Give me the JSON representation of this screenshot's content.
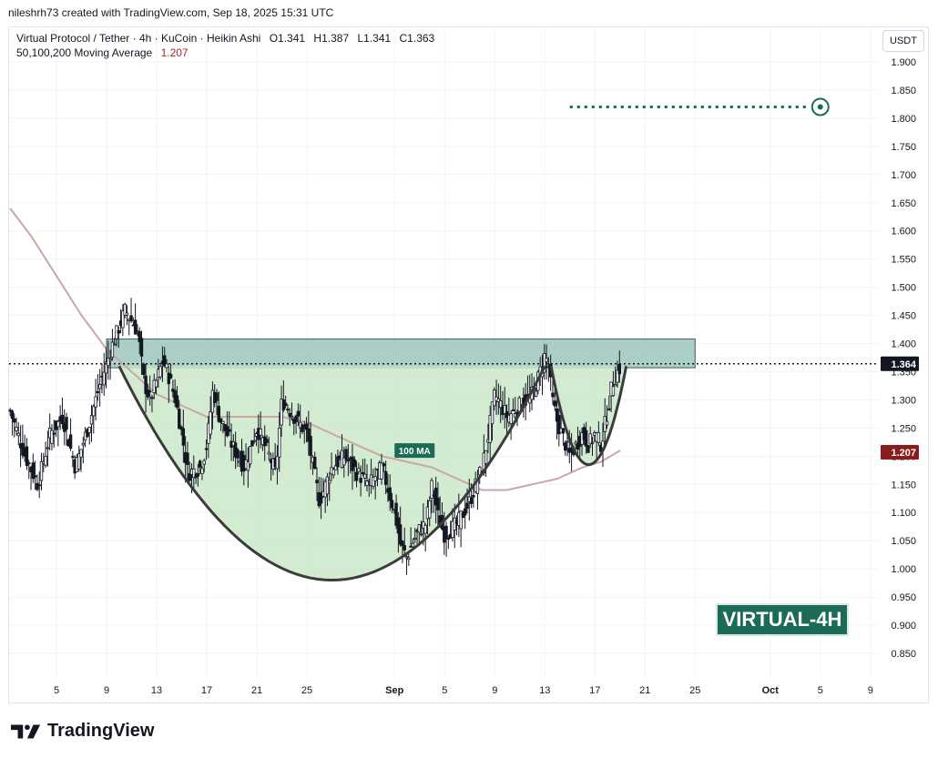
{
  "header": {
    "credit": "nileshrh73 created with TradingView.com, Sep 18, 2025 15:31 UTC"
  },
  "legend": {
    "symbol_line": "Virtual Protocol / Tether · 4h · KuCoin · Heikin Ashi",
    "open": "O1.341",
    "high": "H1.387",
    "low": "L1.341",
    "close": "C1.363",
    "ma_label": "50,100,200 Moving Average",
    "ma_value": "1.207"
  },
  "price_scale": {
    "unit_button": "USDT",
    "current_price_label": "1.364",
    "ma_price_label": "1.207",
    "colors": {
      "current": "#131722",
      "ma": "#8a1c1c"
    }
  },
  "annotations": {
    "ma_label": "100 MA",
    "badge": "VIRTUAL-4H"
  },
  "footer": {
    "logo_text": "TradingView"
  },
  "chart_data": {
    "type": "candlestick",
    "title": "",
    "y_ticks": [
      "1.900",
      "1.850",
      "1.800",
      "1.750",
      "1.700",
      "1.650",
      "1.600",
      "1.550",
      "1.500",
      "1.450",
      "1.400",
      "1.350",
      "1.300",
      "1.250",
      "1.200",
      "1.150",
      "1.100",
      "1.050",
      "1.000",
      "0.950",
      "0.900",
      "0.850"
    ],
    "ylim": [
      0.81,
      1.95
    ],
    "x_ticks": [
      {
        "label": "5",
        "day": 5
      },
      {
        "label": "9",
        "day": 9
      },
      {
        "label": "13",
        "day": 13
      },
      {
        "label": "17",
        "day": 17
      },
      {
        "label": "21",
        "day": 21
      },
      {
        "label": "25",
        "day": 25
      },
      {
        "label": "Sep",
        "day": 32,
        "bold": true
      },
      {
        "label": "5",
        "day": 36
      },
      {
        "label": "9",
        "day": 40
      },
      {
        "label": "13",
        "day": 44
      },
      {
        "label": "17",
        "day": 48
      },
      {
        "label": "21",
        "day": 52
      },
      {
        "label": "25",
        "day": 56
      },
      {
        "label": "Oct",
        "day": 62,
        "bold": true
      },
      {
        "label": "5",
        "day": 66
      },
      {
        "label": "9",
        "day": 70
      }
    ],
    "xlim": [
      1.3,
      72.0
    ],
    "price_path": [
      [
        1.3,
        1.28
      ],
      [
        2.5,
        1.2
      ],
      [
        3.5,
        1.15
      ],
      [
        4.5,
        1.24
      ],
      [
        5.5,
        1.27
      ],
      [
        6.5,
        1.18
      ],
      [
        7.5,
        1.25
      ],
      [
        8.5,
        1.33
      ],
      [
        9.5,
        1.4
      ],
      [
        10.5,
        1.46
      ],
      [
        11.0,
        1.44
      ],
      [
        11.5,
        1.42
      ],
      [
        12.0,
        1.33
      ],
      [
        12.5,
        1.3
      ],
      [
        13.5,
        1.37
      ],
      [
        14.0,
        1.34
      ],
      [
        14.5,
        1.3
      ],
      [
        15.0,
        1.24
      ],
      [
        15.5,
        1.17
      ],
      [
        16.5,
        1.18
      ],
      [
        17.0,
        1.22
      ],
      [
        17.5,
        1.32
      ],
      [
        18.0,
        1.27
      ],
      [
        19.0,
        1.22
      ],
      [
        20.0,
        1.18
      ],
      [
        21.0,
        1.25
      ],
      [
        22.0,
        1.2
      ],
      [
        22.5,
        1.17
      ],
      [
        23.0,
        1.3
      ],
      [
        24.0,
        1.27
      ],
      [
        25.0,
        1.24
      ],
      [
        26.0,
        1.12
      ],
      [
        27.0,
        1.18
      ],
      [
        28.0,
        1.2
      ],
      [
        29.0,
        1.17
      ],
      [
        30.0,
        1.15
      ],
      [
        31.0,
        1.18
      ],
      [
        32.0,
        1.1
      ],
      [
        32.5,
        1.04
      ],
      [
        33.0,
        1.02
      ],
      [
        33.5,
        1.05
      ],
      [
        34.0,
        1.07
      ],
      [
        34.5,
        1.08
      ],
      [
        35.0,
        1.15
      ],
      [
        35.5,
        1.09
      ],
      [
        36.0,
        1.06
      ],
      [
        37.0,
        1.08
      ],
      [
        38.0,
        1.12
      ],
      [
        39.0,
        1.18
      ],
      [
        39.5,
        1.24
      ],
      [
        40.0,
        1.31
      ],
      [
        41.0,
        1.27
      ],
      [
        42.0,
        1.29
      ],
      [
        43.0,
        1.31
      ],
      [
        43.5,
        1.34
      ],
      [
        44.0,
        1.38
      ],
      [
        44.3,
        1.36
      ],
      [
        44.6,
        1.3
      ],
      [
        45.0,
        1.26
      ],
      [
        45.5,
        1.23
      ],
      [
        46.0,
        1.2
      ],
      [
        46.5,
        1.22
      ],
      [
        47.0,
        1.24
      ],
      [
        47.5,
        1.22
      ],
      [
        48.0,
        1.24
      ],
      [
        48.5,
        1.22
      ],
      [
        49.0,
        1.28
      ],
      [
        49.4,
        1.33
      ],
      [
        49.8,
        1.35
      ],
      [
        50.1,
        1.36
      ]
    ],
    "ma100_path": [
      [
        1.3,
        1.64
      ],
      [
        3.0,
        1.59
      ],
      [
        5.0,
        1.52
      ],
      [
        7.0,
        1.45
      ],
      [
        9.0,
        1.39
      ],
      [
        11.0,
        1.35
      ],
      [
        13.0,
        1.31
      ],
      [
        15.0,
        1.29
      ],
      [
        17.0,
        1.27
      ],
      [
        19.0,
        1.27
      ],
      [
        21.0,
        1.27
      ],
      [
        23.0,
        1.27
      ],
      [
        25.0,
        1.26
      ],
      [
        27.0,
        1.24
      ],
      [
        29.0,
        1.22
      ],
      [
        31.0,
        1.2
      ],
      [
        33.0,
        1.19
      ],
      [
        35.0,
        1.18
      ],
      [
        37.0,
        1.16
      ],
      [
        39.0,
        1.14
      ],
      [
        41.0,
        1.14
      ],
      [
        43.0,
        1.15
      ],
      [
        45.0,
        1.16
      ],
      [
        47.0,
        1.18
      ],
      [
        48.5,
        1.19
      ],
      [
        50.0,
        1.21
      ]
    ],
    "resistance_zone": {
      "low": 1.357,
      "high": 1.408,
      "x_start": 9.0,
      "x_end": 56.0
    },
    "cup": {
      "left_x": 10.0,
      "right_x": 44.0,
      "rim": 1.36,
      "bottom": 0.98
    },
    "handle": {
      "left_x": 44.5,
      "right_x": 50.5,
      "rim": 1.36,
      "bottom": 1.185
    },
    "current_price_line": 1.364,
    "target": {
      "price": 1.82,
      "x_start": 46.0,
      "x_end": 66.0
    }
  }
}
